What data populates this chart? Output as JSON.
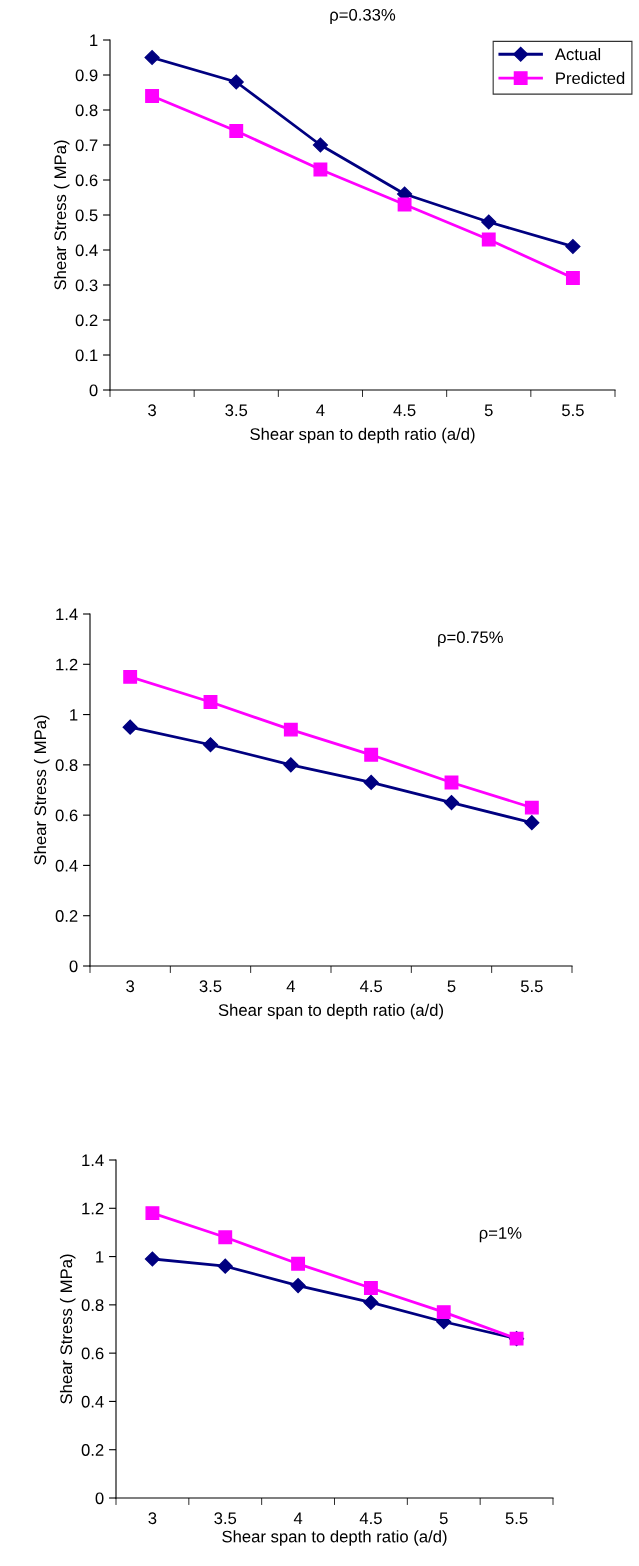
{
  "chart_data": [
    {
      "type": "line",
      "title": "ρ=0.33%",
      "xlabel": "Shear span to depth ratio (a/d)",
      "ylabel": "Shear Stress ( MPa)",
      "categories": [
        "3",
        "3.5",
        "4",
        "4.5",
        "5",
        "5.5"
      ],
      "ylim": [
        0,
        1
      ],
      "yticks": [
        0,
        0.1,
        0.2,
        0.3,
        0.4,
        0.5,
        0.6,
        0.7,
        0.8,
        0.9,
        1
      ],
      "grid": false,
      "legend": "top right",
      "line_style": "solid",
      "series": [
        {
          "name": "Actual",
          "color": "#000080",
          "marker": "diamond",
          "values": [
            0.95,
            0.88,
            0.7,
            0.56,
            0.48,
            0.41
          ]
        },
        {
          "name": "Predicted",
          "color": "#ff00ff",
          "marker": "square",
          "values": [
            0.84,
            0.74,
            0.63,
            0.53,
            0.43,
            0.32
          ]
        }
      ]
    },
    {
      "type": "line",
      "annotations": [
        "ρ=0.75%"
      ],
      "xlabel": "Shear span to depth ratio (a/d)",
      "ylabel": "Shear Stress ( MPa)",
      "categories": [
        "3",
        "3.5",
        "4",
        "4.5",
        "5",
        "5.5"
      ],
      "ylim": [
        0,
        1.4
      ],
      "yticks": [
        0,
        0.2,
        0.4,
        0.6,
        0.8,
        1,
        1.2,
        1.4
      ],
      "grid": false,
      "line_style": "solid",
      "series": [
        {
          "color": "#000080",
          "marker": "diamond",
          "values": [
            0.95,
            0.88,
            0.8,
            0.73,
            0.65,
            0.57
          ]
        },
        {
          "color": "#ff00ff",
          "marker": "square",
          "values": [
            1.15,
            1.05,
            0.94,
            0.84,
            0.73,
            0.63
          ]
        }
      ]
    },
    {
      "type": "line",
      "annotations": [
        "ρ=1%"
      ],
      "xlabel": "Shear span to depth ratio (a/d)",
      "ylabel": "Shear Stress ( MPa)",
      "categories": [
        "3",
        "3.5",
        "4",
        "4.5",
        "5",
        "5.5"
      ],
      "ylim": [
        0,
        1.4
      ],
      "yticks": [
        0,
        0.2,
        0.4,
        0.6,
        0.8,
        1,
        1.2,
        1.4
      ],
      "grid": false,
      "line_style": "solid",
      "series": [
        {
          "color": "#000080",
          "marker": "diamond",
          "values": [
            0.99,
            0.96,
            0.88,
            0.81,
            0.73,
            0.66
          ]
        },
        {
          "color": "#ff00ff",
          "marker": "square",
          "values": [
            1.18,
            1.08,
            0.97,
            0.87,
            0.77,
            0.66
          ]
        }
      ]
    }
  ]
}
